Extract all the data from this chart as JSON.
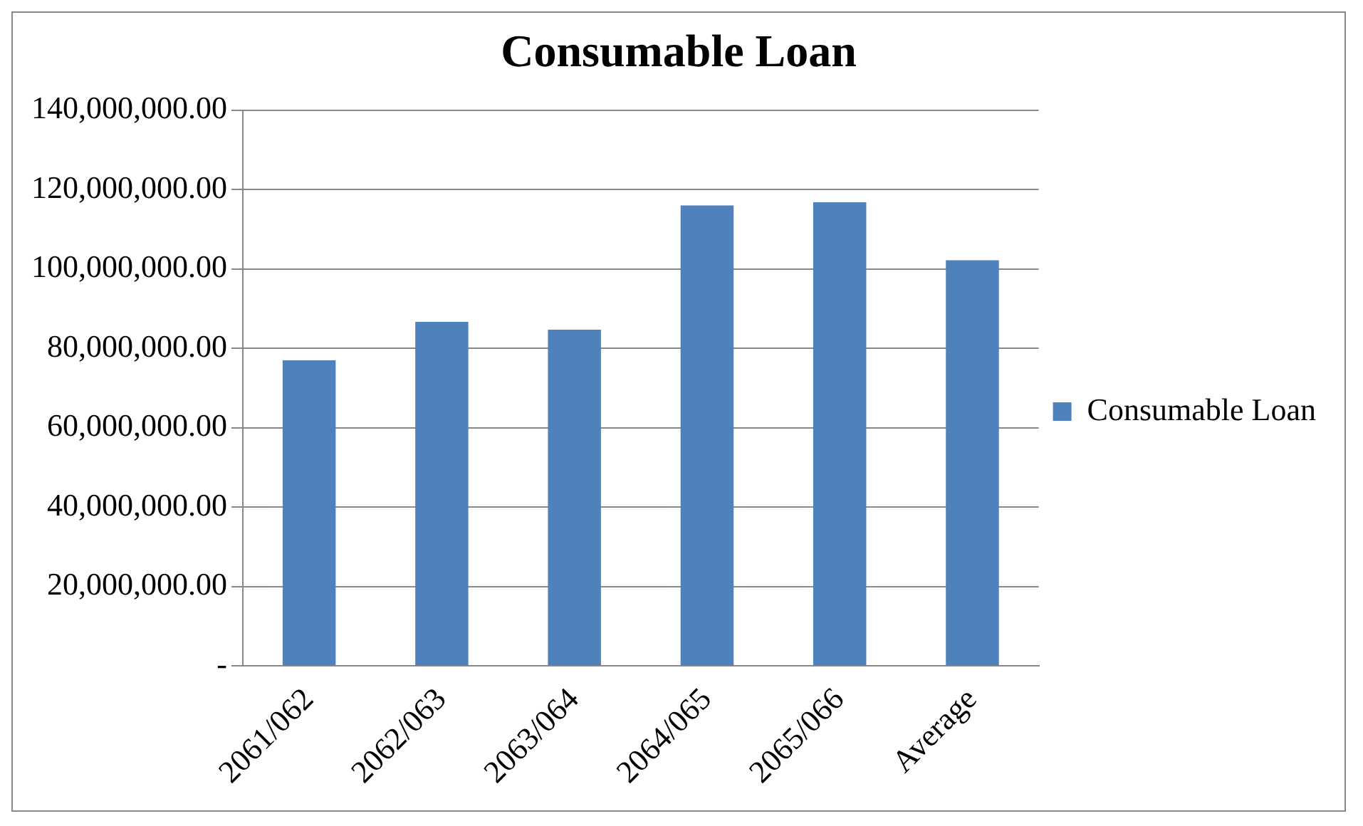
{
  "chart_data": {
    "type": "bar",
    "title": "Consumable Loan",
    "categories": [
      "2061/062",
      "2062/063",
      "2063/064",
      "2064/065",
      "2065/066",
      "Average"
    ],
    "series": [
      {
        "name": "Consumable Loan",
        "color": "#4f81bd",
        "values": [
          77000000,
          86700000,
          84700000,
          116000000,
          116800000,
          102200000
        ]
      }
    ],
    "ylim": [
      0,
      140000000
    ],
    "yticks": [
      {
        "value": 0,
        "label": "-"
      },
      {
        "value": 20000000,
        "label": "20,000,000.00"
      },
      {
        "value": 40000000,
        "label": "40,000,000.00"
      },
      {
        "value": 60000000,
        "label": "60,000,000.00"
      },
      {
        "value": 80000000,
        "label": "80,000,000.00"
      },
      {
        "value": 100000000,
        "label": "100,000,000.00"
      },
      {
        "value": 120000000,
        "label": "120,000,000.00"
      },
      {
        "value": 140000000,
        "label": "140,000,000.00"
      }
    ],
    "grid": "y",
    "legend": "right"
  }
}
